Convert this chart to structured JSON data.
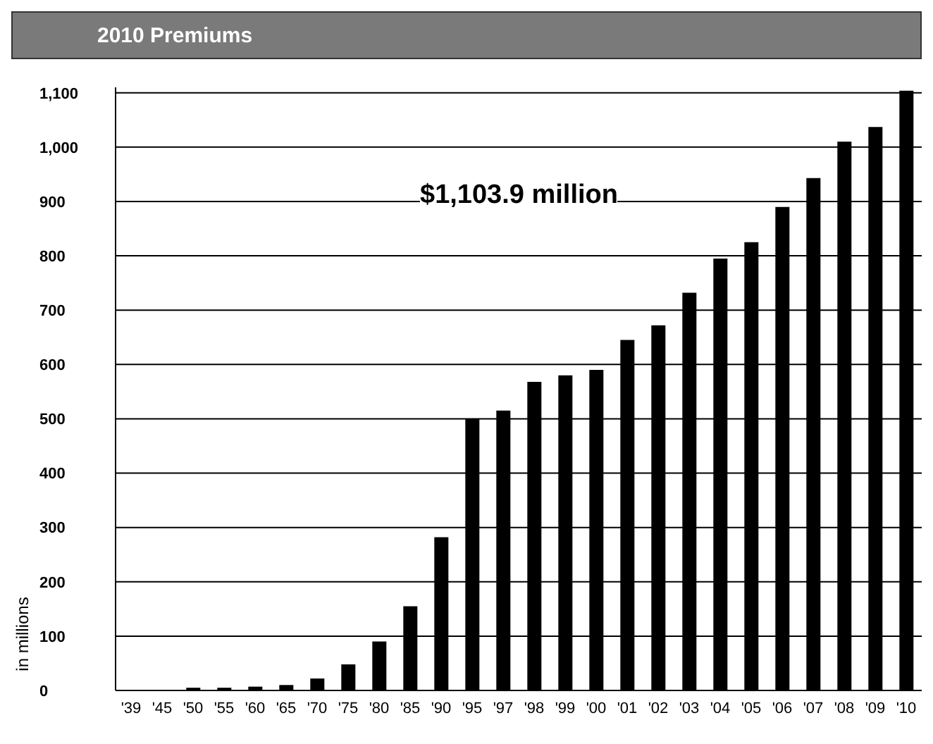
{
  "chart_data": {
    "type": "bar",
    "title": "2010 Premiums",
    "ylabel": "in millions",
    "categories": [
      "'39",
      "'45",
      "'50",
      "'55",
      "'60",
      "'65",
      "'70",
      "'75",
      "'80",
      "'85",
      "'90",
      "'95",
      "'97",
      "'98",
      "'99",
      "'00",
      "'01",
      "'02",
      "'03",
      "'04",
      "'05",
      "'06",
      "'07",
      "'08",
      "'09",
      "'10"
    ],
    "values": [
      0,
      0,
      5,
      5,
      7,
      10,
      22,
      48,
      90,
      155,
      282,
      500,
      515,
      568,
      580,
      590,
      645,
      672,
      732,
      795,
      825,
      890,
      943,
      1010,
      1037,
      1103.9
    ],
    "color": "#000000",
    "ylim": [
      0,
      1110
    ],
    "yticks": [
      0,
      100,
      200,
      300,
      400,
      500,
      600,
      700,
      800,
      900,
      {
        "value": 1000,
        "label": "1,000"
      },
      {
        "value": 1100,
        "label": "1,100"
      }
    ],
    "grid": "y",
    "annotations": [
      "$1,103.9 million"
    ]
  }
}
